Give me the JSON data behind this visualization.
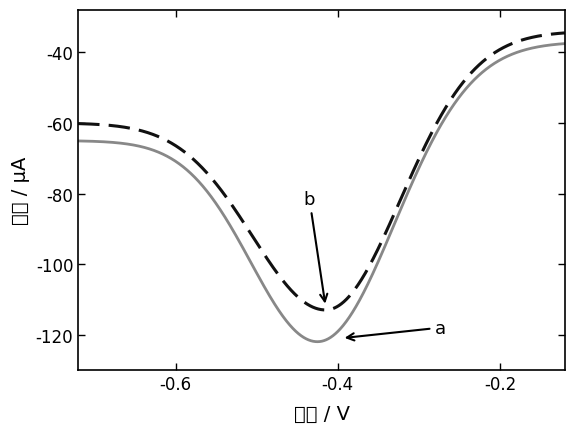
{
  "title": "",
  "xlabel": "电压 / V",
  "ylabel": "电流 / μA",
  "xlim": [
    -0.72,
    -0.12
  ],
  "ylim": [
    -130,
    -28
  ],
  "xticks": [
    -0.6,
    -0.4,
    -0.2
  ],
  "yticks": [
    -120,
    -100,
    -80,
    -60,
    -40
  ],
  "curve_a_color": "#888888",
  "curve_b_color": "#111111",
  "curve_a_lw": 2.0,
  "curve_b_lw": 2.2,
  "bg_color": "#ffffff",
  "xlabel_fontsize": 14,
  "ylabel_fontsize": 14,
  "tick_fontsize": 12,
  "label_a": "a",
  "label_b": "b"
}
